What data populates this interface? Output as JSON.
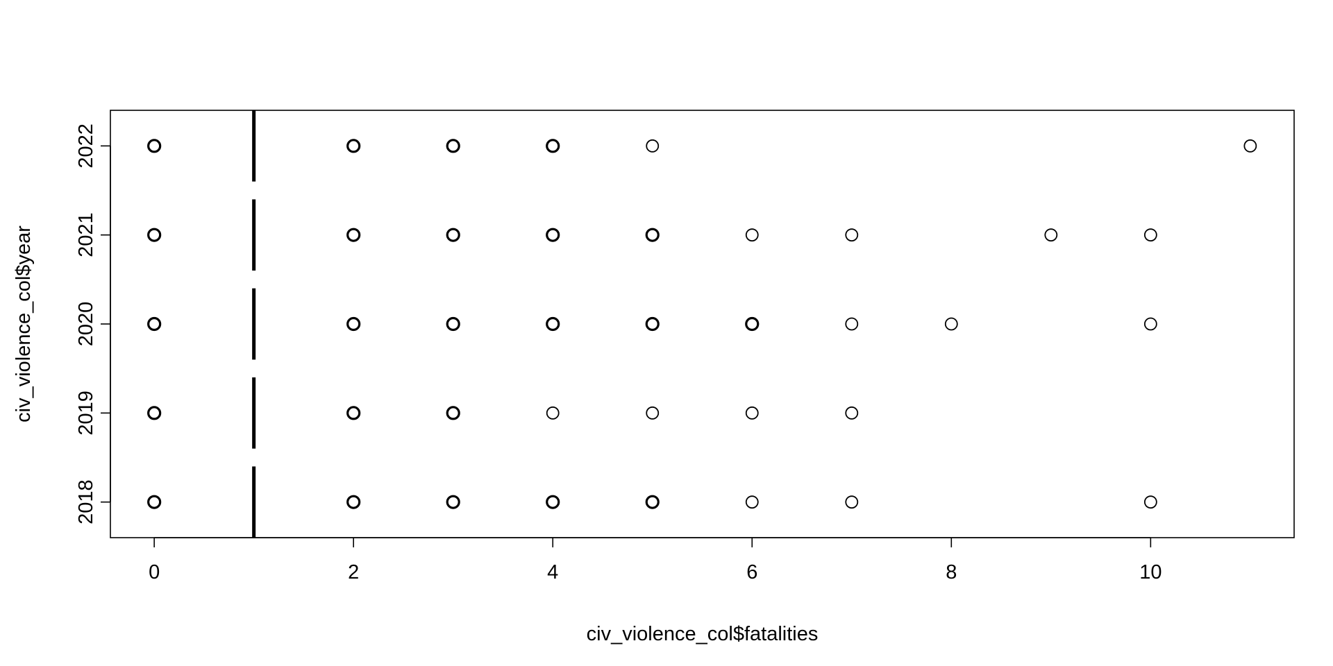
{
  "chart_data": {
    "type": "scatter",
    "title": "",
    "xlabel": "civ_violence_col$fatalities",
    "ylabel": "civ_violence_col$year",
    "xlim": [
      -0.44,
      11.44
    ],
    "ylim": [
      2017.6,
      2022.4
    ],
    "x_ticks": [
      0,
      2,
      4,
      6,
      8,
      10
    ],
    "y_ticks": [
      2018,
      2019,
      2020,
      2021,
      2022
    ],
    "grid": false,
    "legend": "none",
    "point_style": "open-circle",
    "color": "#000000",
    "series": [
      {
        "points": [
          {
            "x": 0,
            "y": 2018,
            "dense": true
          },
          {
            "x": 2,
            "y": 2018,
            "dense": true
          },
          {
            "x": 3,
            "y": 2018,
            "dense": true
          },
          {
            "x": 4,
            "y": 2018,
            "dense": true
          },
          {
            "x": 5,
            "y": 2018,
            "dense": true
          },
          {
            "x": 6,
            "y": 2018,
            "dense": false
          },
          {
            "x": 7,
            "y": 2018,
            "dense": false
          },
          {
            "x": 10,
            "y": 2018,
            "dense": false
          },
          {
            "x": 0,
            "y": 2019,
            "dense": true
          },
          {
            "x": 2,
            "y": 2019,
            "dense": true
          },
          {
            "x": 3,
            "y": 2019,
            "dense": true
          },
          {
            "x": 4,
            "y": 2019,
            "dense": false
          },
          {
            "x": 5,
            "y": 2019,
            "dense": false
          },
          {
            "x": 6,
            "y": 2019,
            "dense": false
          },
          {
            "x": 7,
            "y": 2019,
            "dense": false
          },
          {
            "x": 0,
            "y": 2020,
            "dense": true
          },
          {
            "x": 2,
            "y": 2020,
            "dense": true
          },
          {
            "x": 3,
            "y": 2020,
            "dense": true
          },
          {
            "x": 4,
            "y": 2020,
            "dense": true
          },
          {
            "x": 5,
            "y": 2020,
            "dense": true
          },
          {
            "x": 6,
            "y": 2020,
            "dense": true
          },
          {
            "x": 7,
            "y": 2020,
            "dense": false
          },
          {
            "x": 8,
            "y": 2020,
            "dense": false
          },
          {
            "x": 10,
            "y": 2020,
            "dense": false
          },
          {
            "x": 0,
            "y": 2021,
            "dense": true
          },
          {
            "x": 2,
            "y": 2021,
            "dense": true
          },
          {
            "x": 3,
            "y": 2021,
            "dense": true
          },
          {
            "x": 4,
            "y": 2021,
            "dense": true
          },
          {
            "x": 5,
            "y": 2021,
            "dense": true
          },
          {
            "x": 6,
            "y": 2021,
            "dense": false
          },
          {
            "x": 7,
            "y": 2021,
            "dense": false
          },
          {
            "x": 9,
            "y": 2021,
            "dense": false
          },
          {
            "x": 10,
            "y": 2021,
            "dense": false
          },
          {
            "x": 0,
            "y": 2022,
            "dense": true
          },
          {
            "x": 2,
            "y": 2022,
            "dense": true
          },
          {
            "x": 3,
            "y": 2022,
            "dense": true
          },
          {
            "x": 4,
            "y": 2022,
            "dense": true
          },
          {
            "x": 5,
            "y": 2022,
            "dense": false
          },
          {
            "x": 11,
            "y": 2022,
            "dense": false
          }
        ],
        "overplotted_bars": [
          {
            "x": 1,
            "y": 2018
          },
          {
            "x": 1,
            "y": 2019
          },
          {
            "x": 1,
            "y": 2020
          },
          {
            "x": 1,
            "y": 2021
          },
          {
            "x": 1,
            "y": 2022
          }
        ]
      }
    ]
  }
}
